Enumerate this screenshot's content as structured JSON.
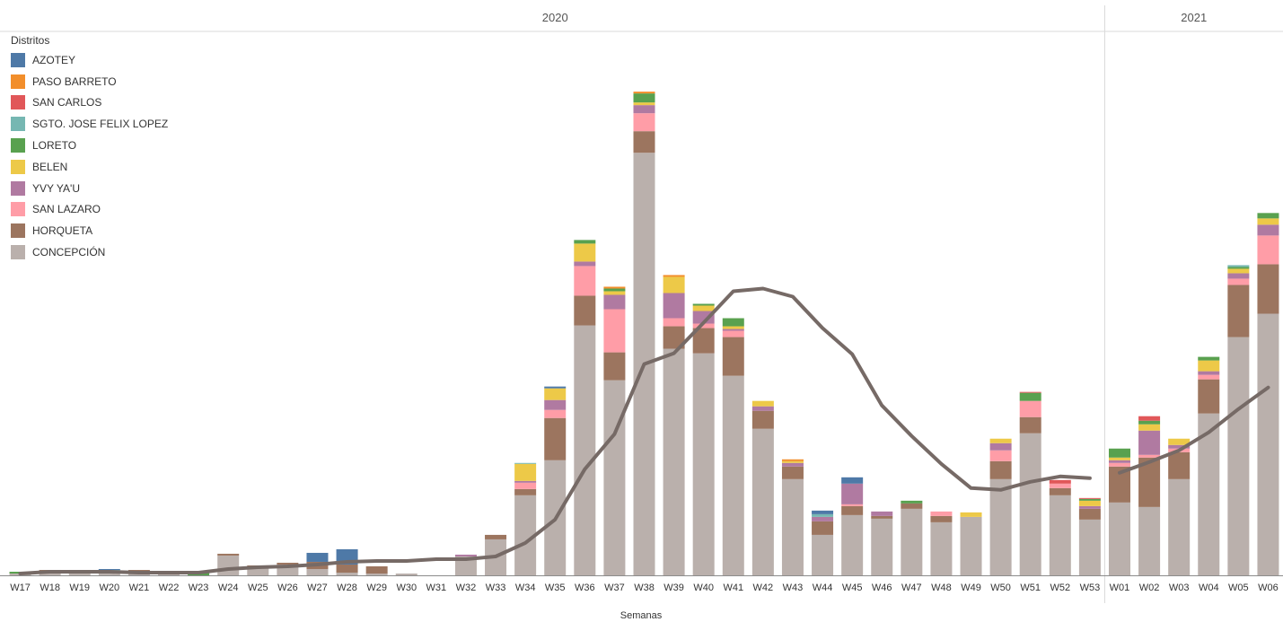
{
  "chart_data": {
    "type": "bar",
    "stacked": true,
    "xlabel": "Semanas",
    "ylabel": "",
    "years": [
      {
        "label": "2020",
        "first": "W17",
        "last": "W53"
      },
      {
        "label": "2021",
        "first": "W01",
        "last": "W06"
      }
    ],
    "categories": [
      "W17",
      "W18",
      "W19",
      "W20",
      "W21",
      "W22",
      "W23",
      "W24",
      "W25",
      "W26",
      "W27",
      "W28",
      "W29",
      "W30",
      "W31",
      "W32",
      "W33",
      "W34",
      "W35",
      "W36",
      "W37",
      "W38",
      "W39",
      "W40",
      "W41",
      "W42",
      "W43",
      "W44",
      "W45",
      "W46",
      "W47",
      "W48",
      "W49",
      "W50",
      "W51",
      "W52",
      "W53",
      "W01",
      "W02",
      "W03",
      "W04",
      "W05",
      "W06"
    ],
    "legend_title": "Distritos",
    "legend_position": "top-left",
    "grid": false,
    "ylim": [
      0,
      600
    ],
    "series": [
      {
        "name": "AZOTEY",
        "color": "#4e79a7",
        "values": [
          0,
          0,
          0,
          1,
          0,
          0,
          0,
          0,
          0,
          0,
          10,
          17,
          0,
          0,
          0,
          0,
          0,
          0,
          2,
          0,
          0,
          0,
          0,
          0,
          0,
          0,
          0,
          4,
          7,
          0,
          0,
          0,
          0,
          0,
          0,
          0,
          0,
          0,
          0,
          0,
          0,
          0,
          0
        ]
      },
      {
        "name": "PASO BARRETO",
        "color": "#f28e2b",
        "values": [
          0,
          0,
          0,
          0,
          0,
          0,
          0,
          0,
          0,
          0,
          0,
          0,
          0,
          0,
          0,
          0,
          0,
          0,
          0,
          0,
          2,
          2,
          2,
          0,
          0,
          0,
          2,
          0,
          0,
          0,
          0,
          0,
          0,
          0,
          0,
          0,
          0,
          0,
          0,
          0,
          0,
          0,
          0
        ]
      },
      {
        "name": "SAN CARLOS",
        "color": "#e15759",
        "values": [
          0,
          0,
          0,
          0,
          0,
          0,
          0,
          0,
          0,
          0,
          0,
          0,
          0,
          0,
          0,
          0,
          0,
          0,
          0,
          0,
          0,
          0,
          0,
          0,
          0,
          0,
          0,
          0,
          0,
          0,
          0,
          0,
          0,
          0,
          1,
          4,
          1,
          0,
          5,
          0,
          0,
          0,
          0
        ]
      },
      {
        "name": "SGTO. JOSE FELIX LOPEZ",
        "color": "#76b7b2",
        "values": [
          0,
          0,
          0,
          3,
          0,
          0,
          0,
          0,
          0,
          0,
          0,
          0,
          0,
          0,
          0,
          0,
          0,
          1,
          0,
          0,
          0,
          0,
          0,
          0,
          0,
          0,
          0,
          3,
          0,
          0,
          0,
          0,
          0,
          0,
          0,
          0,
          0,
          0,
          0,
          0,
          0,
          2,
          0
        ]
      },
      {
        "name": "LORETO",
        "color": "#59a14f",
        "values": [
          2,
          0,
          0,
          0,
          0,
          2,
          3,
          0,
          0,
          0,
          0,
          0,
          0,
          0,
          0,
          0,
          0,
          0,
          0,
          4,
          3,
          10,
          0,
          2,
          9,
          0,
          0,
          0,
          0,
          0,
          3,
          0,
          0,
          0,
          9,
          0,
          2,
          10,
          4,
          0,
          4,
          2,
          6
        ]
      },
      {
        "name": "BELEN",
        "color": "#edc948",
        "values": [
          0,
          0,
          0,
          0,
          0,
          0,
          0,
          0,
          0,
          0,
          0,
          0,
          0,
          0,
          0,
          0,
          0,
          19,
          13,
          20,
          4,
          3,
          18,
          6,
          3,
          6,
          2,
          0,
          0,
          0,
          0,
          0,
          5,
          5,
          0,
          0,
          6,
          3,
          7,
          7,
          12,
          5,
          7
        ]
      },
      {
        "name": "YVY YA'U",
        "color": "#b07aa1",
        "values": [
          0,
          0,
          0,
          0,
          0,
          0,
          0,
          0,
          0,
          0,
          0,
          0,
          0,
          0,
          0,
          2,
          0,
          2,
          11,
          5,
          16,
          9,
          28,
          14,
          2,
          5,
          4,
          5,
          23,
          5,
          0,
          0,
          0,
          8,
          0,
          0,
          3,
          3,
          27,
          4,
          4,
          6,
          12
        ]
      },
      {
        "name": "SAN LAZARO",
        "color": "#ff9da7",
        "values": [
          0,
          0,
          0,
          0,
          0,
          0,
          0,
          0,
          0,
          0,
          0,
          0,
          0,
          0,
          0,
          0,
          0,
          7,
          9,
          33,
          48,
          20,
          9,
          5,
          7,
          0,
          0,
          0,
          2,
          0,
          0,
          5,
          0,
          12,
          18,
          5,
          0,
          4,
          3,
          4,
          5,
          7,
          32
        ]
      },
      {
        "name": "HORQUETA",
        "color": "#9c755f",
        "values": [
          0,
          3,
          2,
          0,
          3,
          0,
          0,
          2,
          3,
          2,
          8,
          9,
          8,
          0,
          0,
          0,
          5,
          7,
          47,
          33,
          31,
          24,
          25,
          28,
          43,
          20,
          14,
          15,
          10,
          3,
          6,
          7,
          0,
          20,
          18,
          8,
          12,
          40,
          55,
          30,
          38,
          58,
          55
        ]
      },
      {
        "name": "CONCEPCIÓN",
        "color": "#bab0ac",
        "values": [
          2,
          3,
          4,
          3,
          3,
          2,
          0,
          22,
          8,
          12,
          7,
          3,
          2,
          2,
          0,
          21,
          40,
          89,
          128,
          278,
          217,
          470,
          252,
          247,
          222,
          163,
          107,
          45,
          67,
          63,
          74,
          59,
          65,
          107,
          158,
          89,
          62,
          81,
          76,
          107,
          180,
          265,
          291
        ]
      }
    ],
    "trend_line": {
      "name": "",
      "color": "#766a66",
      "segments": [
        {
          "start": "W17",
          "values": [
            2,
            4,
            4,
            4,
            3,
            3,
            3,
            7,
            9,
            10,
            12,
            15,
            16,
            16,
            18,
            18,
            21,
            36,
            62,
            118,
            157,
            235,
            247,
            281,
            316,
            319,
            310,
            275,
            246,
            189,
            155,
            124,
            97,
            95,
            104,
            110,
            108
          ]
        },
        {
          "start": "W01",
          "values": [
            114,
            126,
            139,
            159,
            185,
            209
          ]
        }
      ]
    }
  }
}
